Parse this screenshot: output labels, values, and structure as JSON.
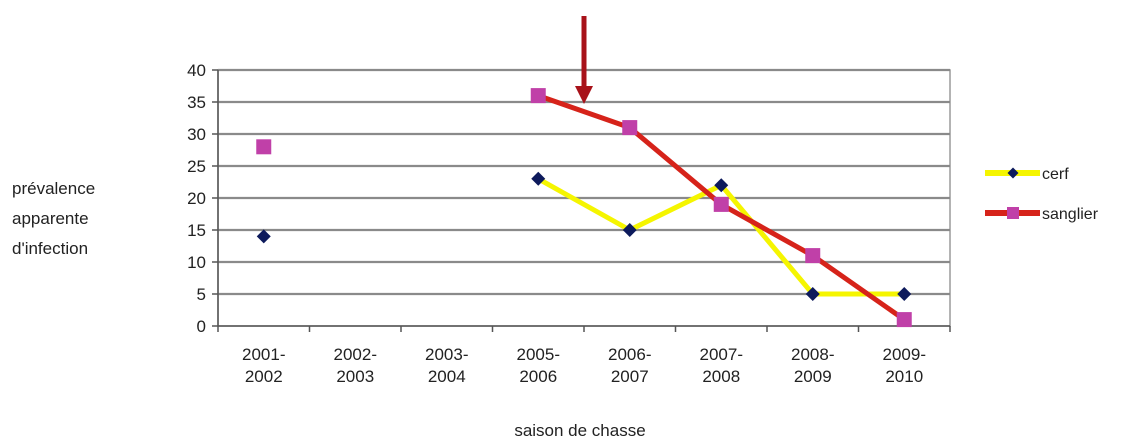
{
  "chart_data": {
    "type": "line",
    "categories": [
      "2001-\n2002",
      "2002-\n2003",
      "2003-\n2004",
      "2005-\n2006",
      "2006-\n2007",
      "2007-\n2008",
      "2008-\n2009",
      "2009-\n2010"
    ],
    "series": [
      {
        "name": "cerf",
        "values": [
          14,
          null,
          null,
          23,
          15,
          22,
          5,
          5
        ],
        "color": "#f5f500",
        "marker_color": "#0d1a5c",
        "marker": "diamond"
      },
      {
        "name": "sanglier",
        "values": [
          28,
          null,
          null,
          36,
          31,
          19,
          11,
          1
        ],
        "color": "#d6231a",
        "marker_color": "#c040a8",
        "marker": "square"
      }
    ],
    "ylabel": "prévalence\napparente\nd'infection",
    "xlabel": "saison de chasse",
    "ylim": [
      0,
      40
    ],
    "yticks": [
      0,
      5,
      10,
      15,
      20,
      25,
      30,
      35,
      40
    ],
    "grid": true,
    "legend": "right",
    "annotation_arrow_category": "2006-\n2007",
    "arrow_color": "#a8121a"
  }
}
